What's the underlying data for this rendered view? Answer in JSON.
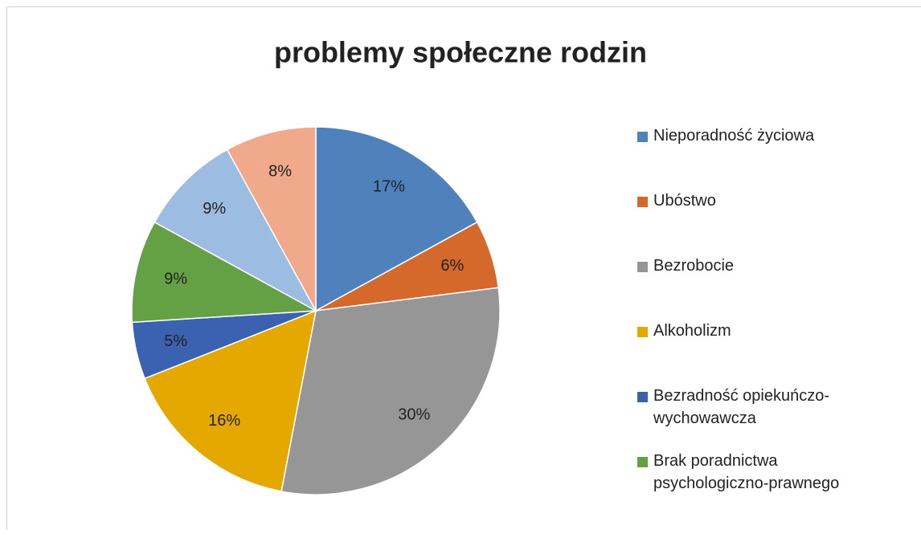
{
  "chart_data": {
    "type": "pie",
    "title": "problemy społeczne rodzin",
    "categories": [
      "Nieporadność życiowa",
      "Ubóstwo",
      "Bezrobocie",
      "Alkoholizm",
      "Bezradność opiekuńczo-wychowawcza",
      "Brak poradnictwa psychologiczno-prawnego",
      null,
      null
    ],
    "values": [
      17,
      6,
      30,
      16,
      5,
      9,
      9,
      8
    ],
    "value_labels": [
      "17%",
      "6%",
      "30%",
      "16%",
      "5%",
      "9%",
      "9%",
      "8%"
    ],
    "colors": [
      "#4f81bd",
      "#d4692b",
      "#969696",
      "#e5a800",
      "#3a62b0",
      "#64a044",
      "#9dbce2",
      "#f0a98a"
    ],
    "legend": "right"
  }
}
